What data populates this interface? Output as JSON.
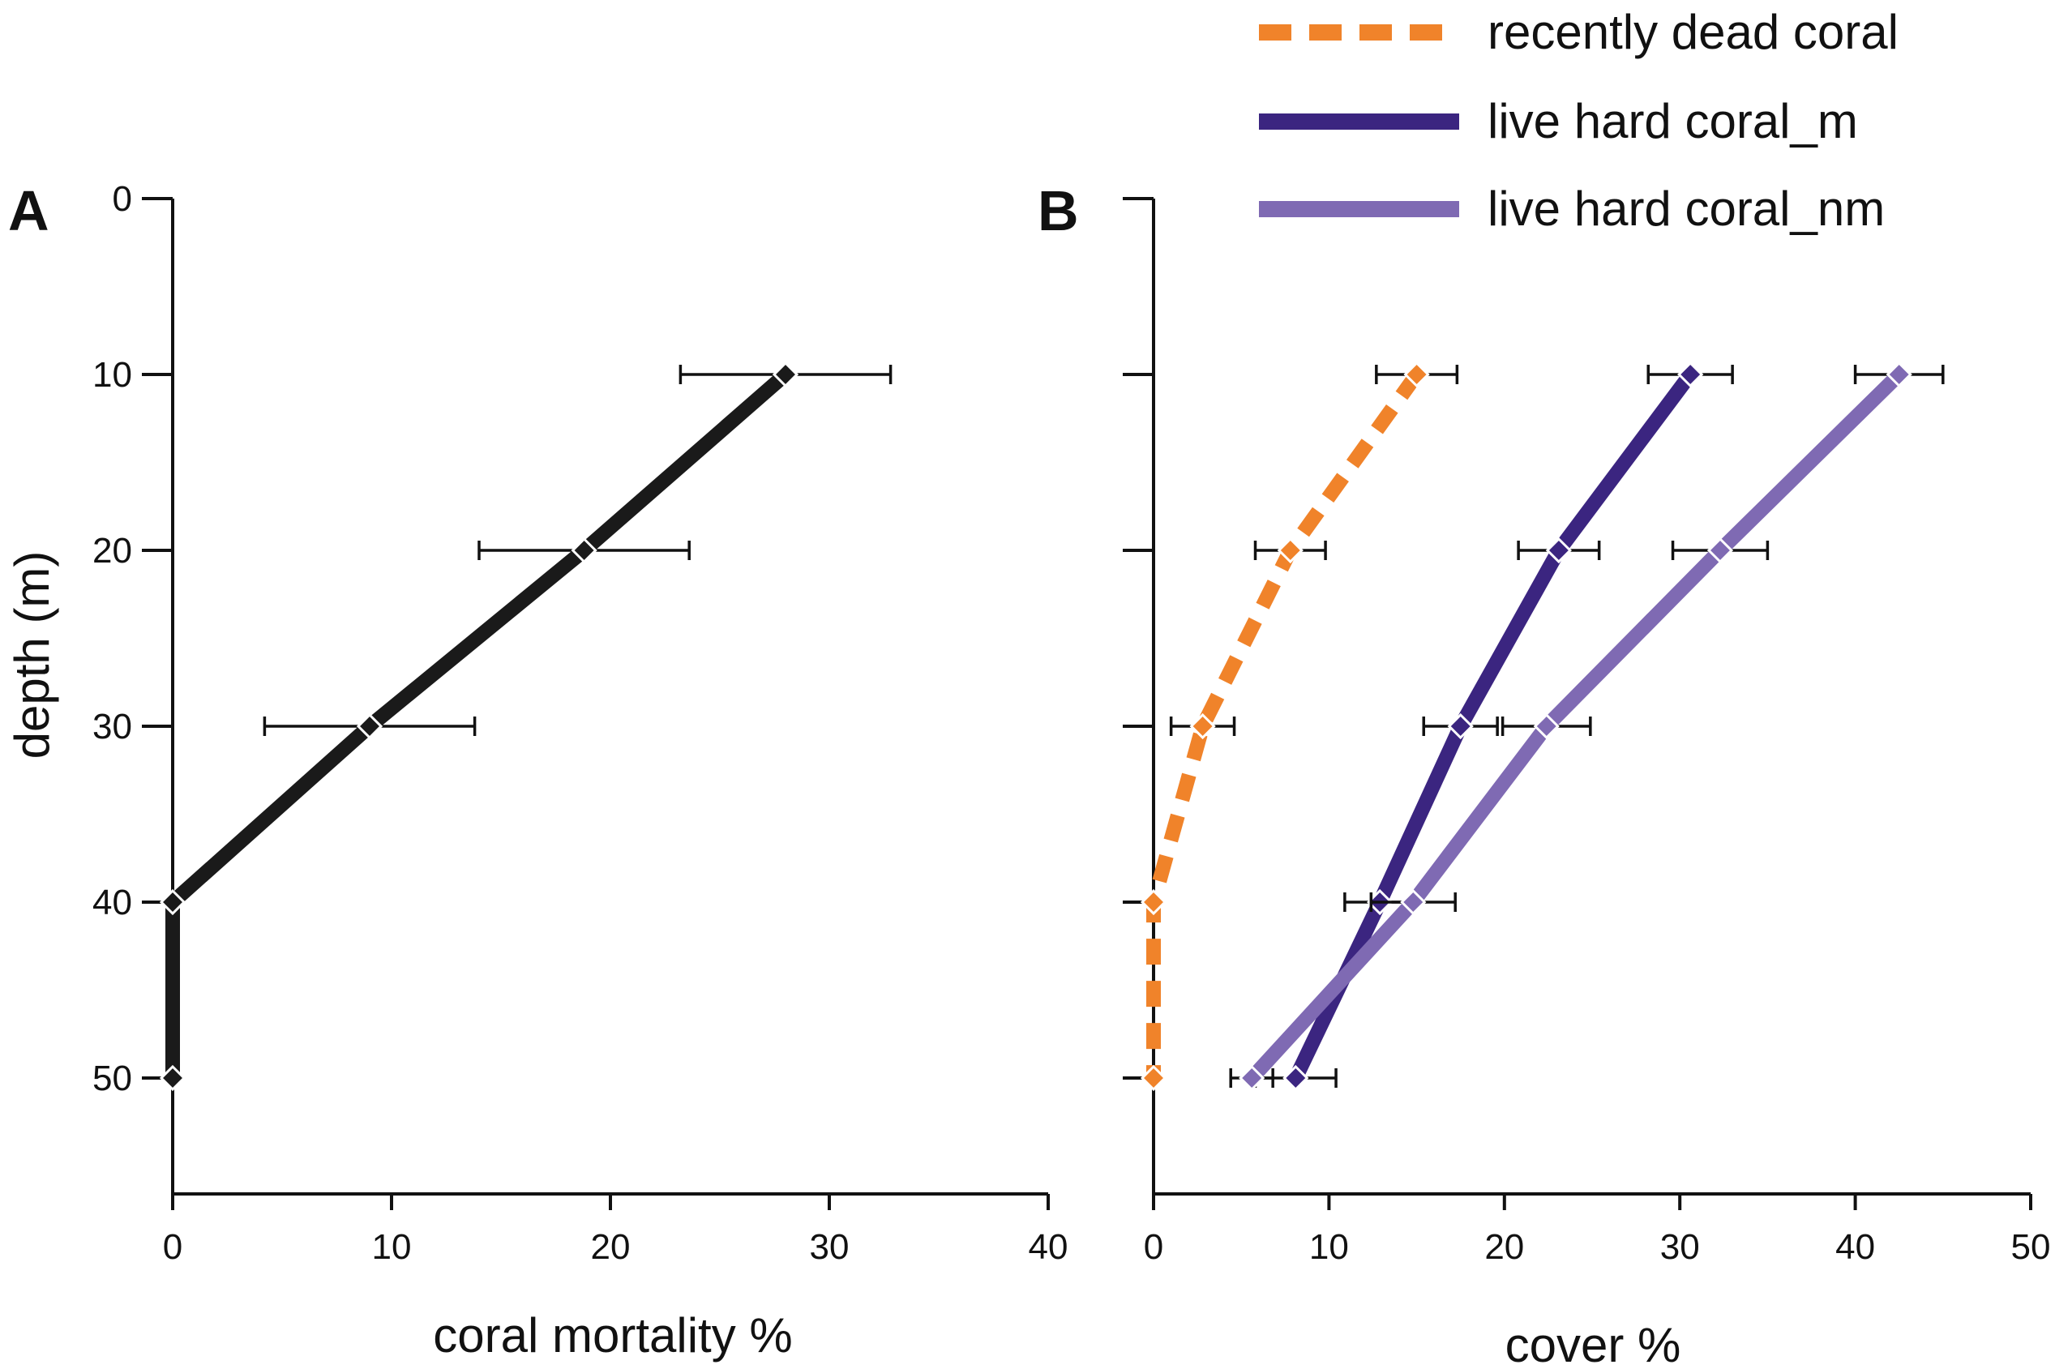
{
  "chart_data": [
    {
      "panel": "A",
      "type": "line",
      "orientation": "horizontal-value-vertical-depth",
      "xlabel": "coral mortality %",
      "ylabel": "depth (m)",
      "xlim": [
        0,
        40
      ],
      "ylim": [
        0,
        56
      ],
      "x_ticks": [
        0,
        10,
        20,
        30,
        40
      ],
      "y_ticks": [
        0,
        10,
        20,
        30,
        40,
        50
      ],
      "grid": false,
      "series": [
        {
          "name": "coral mortality",
          "color": "#1a1a1a",
          "style": "solid",
          "depth": [
            10,
            20,
            30,
            40,
            50
          ],
          "values": [
            28,
            18.8,
            9,
            0,
            0
          ],
          "error": [
            4.8,
            4.8,
            4.8,
            null,
            null
          ]
        }
      ]
    },
    {
      "panel": "B",
      "type": "line",
      "orientation": "horizontal-value-vertical-depth",
      "xlabel": "cover %",
      "ylabel": "depth (m)",
      "xlim": [
        0,
        50
      ],
      "ylim": [
        0,
        56
      ],
      "x_ticks": [
        0,
        10,
        20,
        30,
        40,
        50
      ],
      "y_ticks": [
        0,
        10,
        20,
        30,
        40,
        50
      ],
      "grid": false,
      "legend_position": "top-right",
      "series": [
        {
          "name": "recently dead coral",
          "color": "#f0832a",
          "style": "dashed",
          "depth": [
            10,
            20,
            30,
            40,
            50
          ],
          "values": [
            15,
            7.8,
            2.8,
            0,
            0
          ],
          "error": [
            2.3,
            2.0,
            1.8,
            null,
            null
          ]
        },
        {
          "name": "live hard coral_m",
          "color": "#3b2580",
          "style": "solid",
          "depth": [
            10,
            20,
            30,
            40,
            50
          ],
          "values": [
            30.6,
            23.1,
            17.5,
            12.9,
            8.1
          ],
          "error": [
            2.4,
            2.3,
            2.1,
            2.0,
            2.3
          ]
        },
        {
          "name": "live hard coral_nm",
          "color": "#7f6ab3",
          "style": "solid",
          "depth": [
            10,
            20,
            30,
            40,
            50
          ],
          "values": [
            42.5,
            32.3,
            22.4,
            14.8,
            5.6
          ],
          "error": [
            2.5,
            2.7,
            2.5,
            2.4,
            1.2
          ]
        }
      ]
    }
  ]
}
